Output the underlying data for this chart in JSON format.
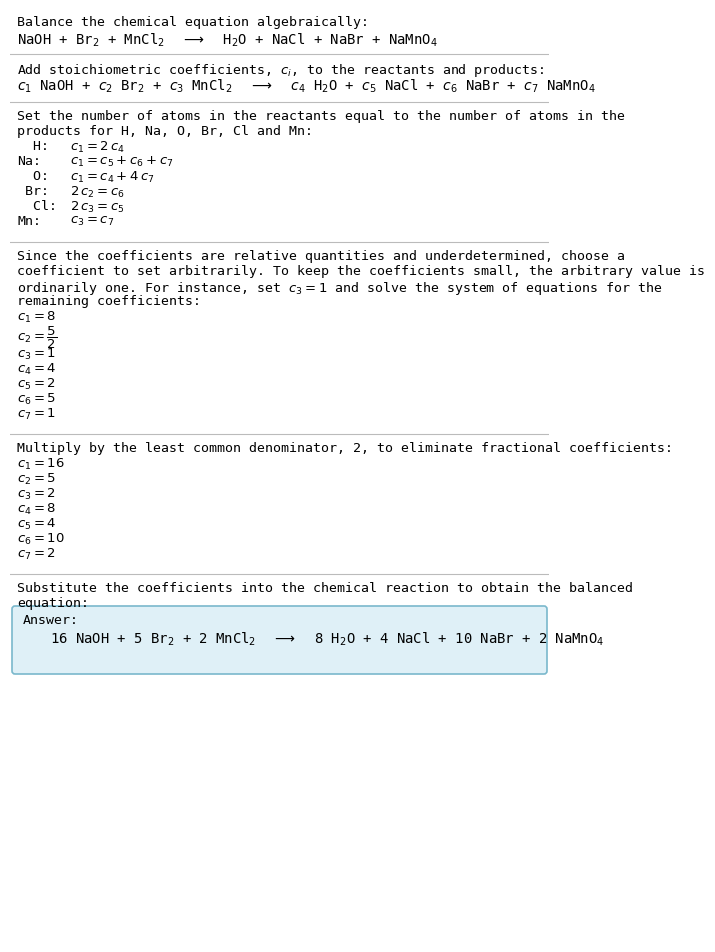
{
  "title": "Balance the chemical equation algebraically:",
  "equation_line": "NaOH + Br$_2$ + MnCl$_2$  $\\longrightarrow$  H$_2$O + NaCl + NaBr + NaMnO$_4$",
  "section2_header": "Add stoichiometric coefficients, $c_i$, to the reactants and products:",
  "section2_eq": "$c_1$ NaOH + $c_2$ Br$_2$ + $c_3$ MnCl$_2$  $\\longrightarrow$  $c_4$ H$_2$O + $c_5$ NaCl + $c_6$ NaBr + $c_7$ NaMnO$_4$",
  "section3_header_l1": "Set the number of atoms in the reactants equal to the number of atoms in the",
  "section3_header_l2": "products for H, Na, O, Br, Cl and Mn:",
  "section3_lines": [
    [
      "  H:",
      "$c_1 = 2\\,c_4$"
    ],
    [
      "Na:",
      "$c_1 = c_5 + c_6 + c_7$"
    ],
    [
      "  O:",
      "$c_1 = c_4 + 4\\,c_7$"
    ],
    [
      " Br:",
      "$2\\,c_2 = c_6$"
    ],
    [
      "  Cl:",
      "$2\\,c_3 = c_5$"
    ],
    [
      "Mn:",
      "$c_3 = c_7$"
    ]
  ],
  "section4_header_l1": "Since the coefficients are relative quantities and underdetermined, choose a",
  "section4_header_l2": "coefficient to set arbitrarily. To keep the coefficients small, the arbitrary value is",
  "section4_header_l3": "ordinarily one. For instance, set $c_3 = 1$ and solve the system of equations for the",
  "section4_header_l4": "remaining coefficients:",
  "section4_lines_before_frac": [
    "$c_1 = 8$"
  ],
  "section4_frac": "$c_2 = \\dfrac{5}{2}$",
  "section4_lines_after_frac": [
    "$c_3 = 1$",
    "$c_4 = 4$",
    "$c_5 = 2$",
    "$c_6 = 5$",
    "$c_7 = 1$"
  ],
  "section5_header": "Multiply by the least common denominator, 2, to eliminate fractional coefficients:",
  "section5_lines": [
    "$c_1 = 16$",
    "$c_2 = 5$",
    "$c_3 = 2$",
    "$c_4 = 8$",
    "$c_5 = 4$",
    "$c_6 = 10$",
    "$c_7 = 2$"
  ],
  "section6_header_l1": "Substitute the coefficients into the chemical reaction to obtain the balanced",
  "section6_header_l2": "equation:",
  "answer_label": "Answer:",
  "answer_eq": "16 NaOH + 5 Br$_2$ + 2 MnCl$_2$  $\\longrightarrow$  8 H$_2$O + 4 NaCl + 10 NaBr + 2 NaMnO$_4$",
  "bg_color": "#ffffff",
  "answer_box_facecolor": "#dff0f7",
  "answer_box_edgecolor": "#7ab8cc",
  "line_color": "#bbbbbb",
  "text_color": "#000000",
  "font_size": 9.5
}
